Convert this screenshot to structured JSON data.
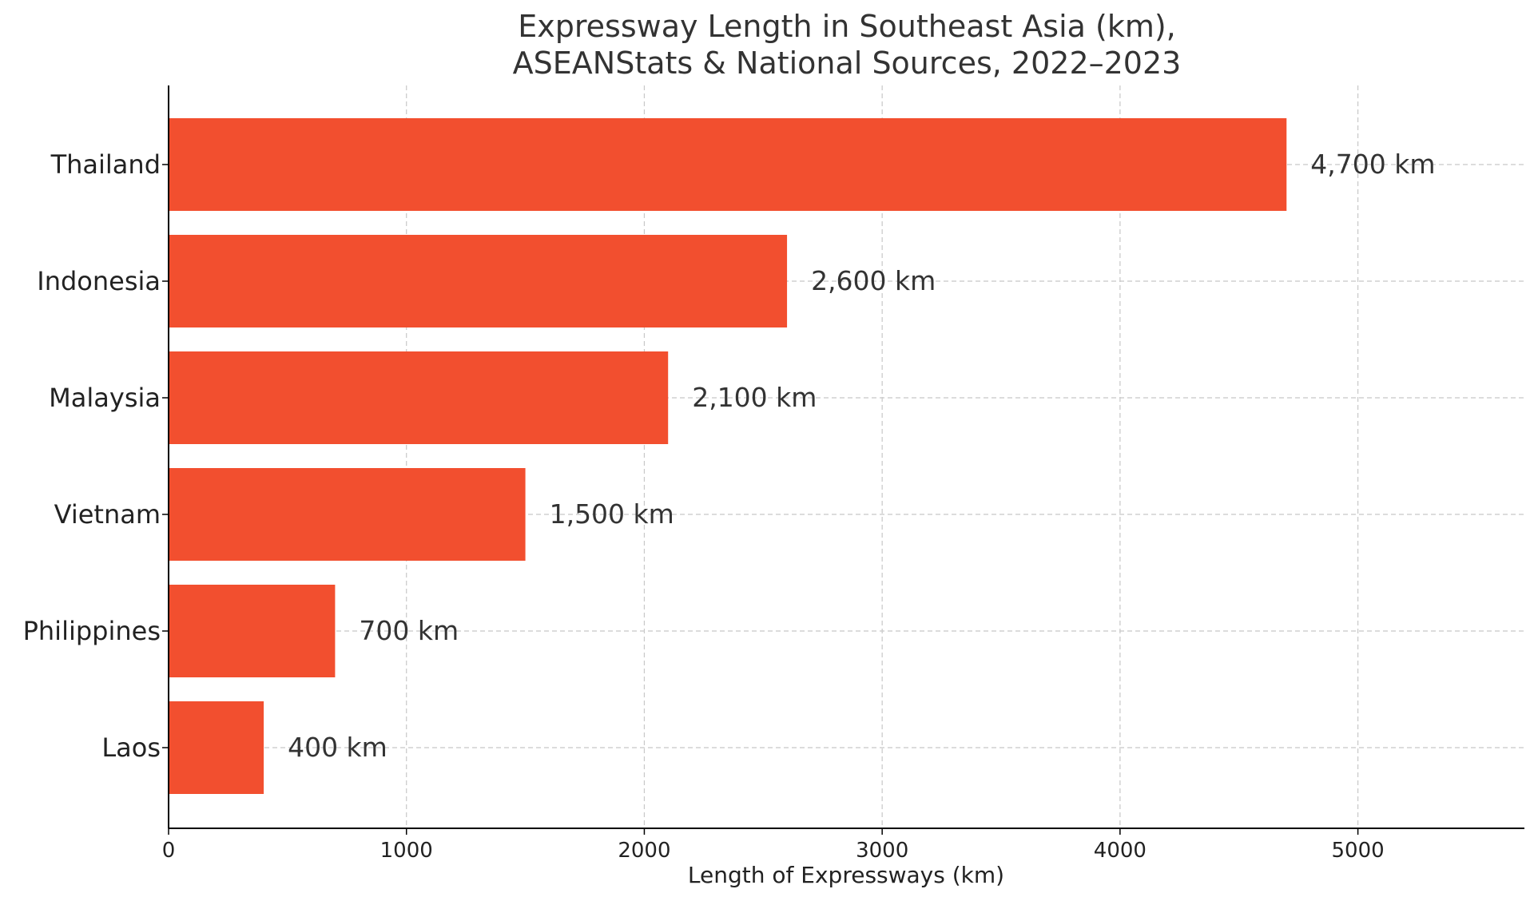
{
  "chart_data": {
    "type": "bar",
    "orientation": "horizontal",
    "title_lines": [
      "Expressway Length in Southeast Asia (km),",
      "ASEANStats & National Sources, 2022–2023"
    ],
    "xlabel": "Length of Expressways (km)",
    "ylabel": "",
    "categories": [
      "Thailand",
      "Indonesia",
      "Malaysia",
      "Vietnam",
      "Philippines",
      "Laos"
    ],
    "values": [
      4700,
      2600,
      2100,
      1500,
      700,
      400
    ],
    "value_labels": [
      "4,700 km",
      "2,600 km",
      "2,100 km",
      "1,500 km",
      "700 km",
      "400 km"
    ],
    "xlim": [
      0,
      5700
    ],
    "xticks": [
      0,
      1000,
      2000,
      3000,
      4000,
      5000
    ],
    "xtick_labels": [
      "0",
      "1000",
      "2000",
      "3000",
      "4000",
      "5000"
    ],
    "grid": true,
    "bar_color": "#f24f2f"
  }
}
